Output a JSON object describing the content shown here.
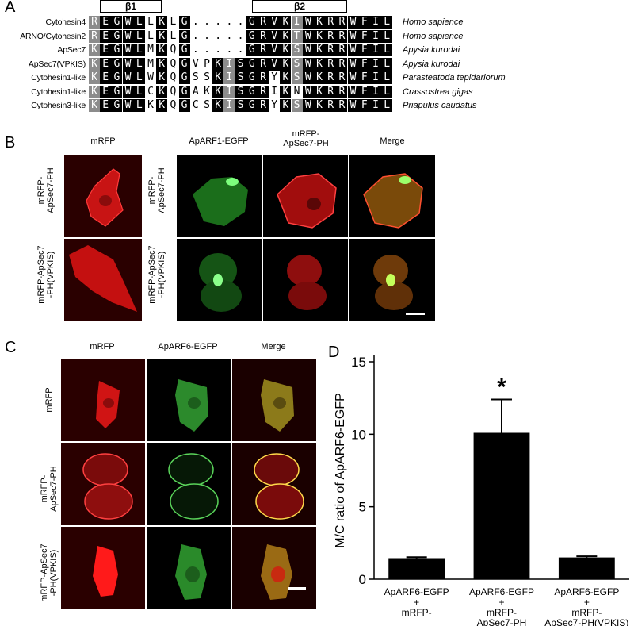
{
  "panel_labels": {
    "a": "A",
    "b": "B",
    "c": "C",
    "d": "D"
  },
  "alignment": {
    "strand_labels": [
      "β1",
      "β2"
    ],
    "rows": [
      {
        "name": "Cytohesin4",
        "species": "Homo sapience",
        "residues": [
          "R",
          "E",
          "G",
          "W",
          "L",
          "L",
          "K",
          "L",
          "G",
          ".",
          ".",
          ".",
          ".",
          ".",
          "G",
          "R",
          "V",
          "K",
          "I",
          "W",
          "K",
          "R",
          "R",
          "W",
          "F",
          "I",
          "L"
        ],
        "shade": [
          "g",
          "b",
          "b",
          "b",
          "b",
          "w",
          "b",
          "w",
          "b",
          "w",
          "w",
          "w",
          "w",
          "w",
          "b",
          "b",
          "b",
          "b",
          "g",
          "b",
          "b",
          "b",
          "b",
          "b",
          "b",
          "b",
          "b"
        ]
      },
      {
        "name": "ARNO/Cytohesin2",
        "species": "Homo sapience",
        "residues": [
          "R",
          "E",
          "G",
          "W",
          "L",
          "L",
          "K",
          "L",
          "G",
          ".",
          ".",
          ".",
          ".",
          ".",
          "G",
          "R",
          "V",
          "K",
          "T",
          "W",
          "K",
          "R",
          "R",
          "W",
          "F",
          "I",
          "L"
        ],
        "shade": [
          "g",
          "b",
          "b",
          "b",
          "b",
          "w",
          "b",
          "w",
          "b",
          "w",
          "w",
          "w",
          "w",
          "w",
          "b",
          "b",
          "b",
          "b",
          "g",
          "b",
          "b",
          "b",
          "b",
          "b",
          "b",
          "b",
          "b"
        ]
      },
      {
        "name": "ApSec7",
        "species": "Apysia kurodai",
        "residues": [
          "K",
          "E",
          "G",
          "W",
          "L",
          "M",
          "K",
          "Q",
          "G",
          ".",
          ".",
          ".",
          ".",
          ".",
          "G",
          "R",
          "V",
          "K",
          "S",
          "W",
          "K",
          "R",
          "R",
          "W",
          "F",
          "I",
          "L"
        ],
        "shade": [
          "g",
          "b",
          "b",
          "b",
          "b",
          "w",
          "b",
          "w",
          "b",
          "w",
          "w",
          "w",
          "w",
          "w",
          "b",
          "b",
          "b",
          "b",
          "g",
          "b",
          "b",
          "b",
          "b",
          "b",
          "b",
          "b",
          "b"
        ]
      },
      {
        "name": "ApSec7(VPKIS)",
        "species": "Apysia kurodai",
        "residues": [
          "K",
          "E",
          "G",
          "W",
          "L",
          "M",
          "K",
          "Q",
          "G",
          "V",
          "P",
          "K",
          "I",
          "S",
          "G",
          "R",
          "V",
          "K",
          "S",
          "W",
          "K",
          "R",
          "R",
          "W",
          "F",
          "I",
          "L"
        ],
        "shade": [
          "g",
          "b",
          "b",
          "b",
          "b",
          "w",
          "b",
          "w",
          "b",
          "w",
          "w",
          "b",
          "g",
          "b",
          "b",
          "b",
          "b",
          "b",
          "g",
          "b",
          "b",
          "b",
          "b",
          "b",
          "b",
          "b",
          "b"
        ]
      },
      {
        "name": "Cytohesin1-like",
        "species": "Parasteatoda tepidariorum",
        "residues": [
          "K",
          "E",
          "G",
          "W",
          "L",
          "W",
          "K",
          "Q",
          "G",
          "S",
          "S",
          "K",
          "I",
          "S",
          "G",
          "R",
          "Y",
          "K",
          "S",
          "W",
          "K",
          "R",
          "R",
          "W",
          "F",
          "I",
          "L"
        ],
        "shade": [
          "g",
          "b",
          "b",
          "b",
          "b",
          "w",
          "b",
          "w",
          "b",
          "w",
          "w",
          "b",
          "g",
          "b",
          "b",
          "b",
          "w",
          "b",
          "g",
          "b",
          "b",
          "b",
          "b",
          "b",
          "b",
          "b",
          "b"
        ]
      },
      {
        "name": "Cytohesin1-like",
        "species": "Crassostrea gigas",
        "residues": [
          "K",
          "E",
          "G",
          "W",
          "L",
          "C",
          "K",
          "Q",
          "G",
          "A",
          "K",
          "K",
          "I",
          "S",
          "G",
          "R",
          "I",
          "K",
          "N",
          "W",
          "K",
          "R",
          "R",
          "W",
          "F",
          "I",
          "L"
        ],
        "shade": [
          "g",
          "b",
          "b",
          "b",
          "b",
          "w",
          "b",
          "w",
          "b",
          "w",
          "w",
          "b",
          "g",
          "b",
          "b",
          "b",
          "w",
          "b",
          "w",
          "b",
          "b",
          "b",
          "b",
          "b",
          "b",
          "b",
          "b"
        ]
      },
      {
        "name": "Cytohesin3-like",
        "species": "Priapulus caudatus",
        "residues": [
          "K",
          "E",
          "G",
          "W",
          "L",
          "K",
          "K",
          "Q",
          "G",
          "C",
          "S",
          "K",
          "I",
          "S",
          "G",
          "R",
          "Y",
          "K",
          "S",
          "W",
          "K",
          "R",
          "R",
          "W",
          "F",
          "I",
          "L"
        ],
        "shade": [
          "g",
          "b",
          "b",
          "b",
          "b",
          "w",
          "b",
          "w",
          "b",
          "w",
          "w",
          "b",
          "g",
          "b",
          "b",
          "b",
          "w",
          "b",
          "g",
          "b",
          "b",
          "b",
          "b",
          "b",
          "b",
          "b",
          "b"
        ]
      }
    ]
  },
  "panel_b": {
    "col_titles": [
      "mRFP",
      "ApARF1-EGFP",
      "mRFP-\nApSec7-PH",
      "Merge"
    ],
    "row_labels_left": [
      "mRFP-\nApSec7-PH",
      "mRFP-ApSec7\n-PH(VPKIS)"
    ],
    "row_labels_right": [
      "mRFP-\nApSec7-PH",
      "mRFP-ApSec7\n-PH(VPKIS)"
    ]
  },
  "panel_c": {
    "col_titles": [
      "mRFP",
      "ApARF6-EGFP",
      "Merge"
    ],
    "row_labels": [
      "mRFP",
      "mRFP-\nApSec7-PH",
      "mRFP-ApSec7\n-PH(VPKIS)"
    ]
  },
  "chart_data": {
    "type": "bar",
    "categories": [
      "ApARF6-EGFP\n+\nmRFP-",
      "ApARF6-EGFP\n+\nmRFP-\nApSec7-PH",
      "ApARF6-EGFP\n+\nmRFP-\nApSec7-PH(VPKIS)"
    ],
    "values": [
      1.45,
      10.1,
      1.5
    ],
    "errors": [
      0.07,
      2.3,
      0.08
    ],
    "significance": [
      "",
      "*",
      ""
    ],
    "ylabel": "M/C ratio of ApARF6-EGFP",
    "ylim": [
      0,
      15
    ],
    "yticks": [
      "0",
      "5",
      "10",
      "15"
    ],
    "bar_color": "#000000"
  }
}
